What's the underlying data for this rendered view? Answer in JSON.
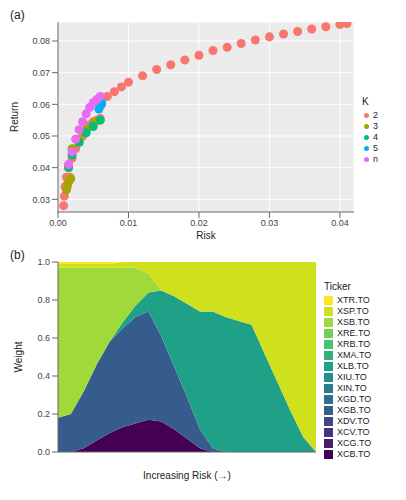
{
  "chart_data": [
    {
      "type": "scatter",
      "title": "(a)",
      "xlabel": "Risk",
      "ylabel": "Return",
      "legend_title": "K",
      "legend": "right",
      "grid": true,
      "marker": "circle",
      "xlim": [
        0,
        0.042
      ],
      "xticks": [
        {
          "value": 0,
          "label": "0.00"
        },
        0.01,
        0.02,
        0.03,
        0.04
      ],
      "ylim": [
        0.026,
        0.086
      ],
      "yticks": [
        0.03,
        0.04,
        0.05,
        0.06,
        0.07,
        0.08
      ],
      "series": [
        {
          "name": "2",
          "color": "#F8766D",
          "x": [
            0.0008,
            0.0009,
            0.001,
            0.0012,
            0.0015,
            0.002,
            0.0025,
            0.003,
            0.0035,
            0.004,
            0.0045,
            0.005,
            0.0055,
            0.006,
            0.0062,
            0.007,
            0.008,
            0.009,
            0.01,
            0.012,
            0.014,
            0.016,
            0.018,
            0.02,
            0.022,
            0.024,
            0.026,
            0.028,
            0.03,
            0.032,
            0.034,
            0.036,
            0.038,
            0.04,
            0.041,
            0.0013,
            0.0015,
            0.0017
          ],
          "values": [
            0.028,
            0.031,
            0.034,
            0.037,
            0.04,
            0.043,
            0.046,
            0.048,
            0.05,
            0.052,
            0.0535,
            0.0545,
            0.055,
            0.0555,
            0.06,
            0.0625,
            0.064,
            0.0655,
            0.067,
            0.069,
            0.071,
            0.0725,
            0.074,
            0.0755,
            0.077,
            0.078,
            0.0792,
            0.0803,
            0.0813,
            0.0822,
            0.083,
            0.0838,
            0.0845,
            0.0852,
            0.0855,
            0.034,
            0.0355,
            0.037
          ]
        },
        {
          "name": "3",
          "color": "#A3A500",
          "x": [
            0.0012,
            0.0014,
            0.0016,
            0.0018,
            0.002,
            0.003,
            0.004,
            0.005,
            0.0058
          ],
          "values": [
            0.033,
            0.035,
            0.036,
            0.0365,
            0.046,
            0.049,
            0.052,
            0.054,
            0.055
          ]
        },
        {
          "name": "4",
          "color": "#00BF7D",
          "x": [
            0.0015,
            0.002,
            0.003,
            0.004,
            0.005,
            0.006
          ],
          "values": [
            0.04,
            0.044,
            0.048,
            0.051,
            0.053,
            0.055
          ]
        },
        {
          "name": "5",
          "color": "#00B0F6",
          "x": [
            0.0058,
            0.006,
            0.0062
          ],
          "values": [
            0.0585,
            0.0595,
            0.0605
          ]
        },
        {
          "name": "n",
          "color": "#E76BF3",
          "x": [
            0.0015,
            0.002,
            0.0025,
            0.003,
            0.0035,
            0.004,
            0.0045,
            0.005,
            0.0055,
            0.006
          ],
          "values": [
            0.041,
            0.045,
            0.049,
            0.052,
            0.0545,
            0.057,
            0.059,
            0.0605,
            0.0615,
            0.0625
          ]
        }
      ]
    },
    {
      "type": "area",
      "title": "(b)",
      "xlabel": "Increasing Risk (→)",
      "ylabel": "Weight",
      "legend_title": "Ticker",
      "legend": "right",
      "grid": false,
      "stacked": true,
      "tick_labels": "y",
      "categories": [
        null,
        null,
        null,
        null,
        null,
        null,
        null,
        null,
        null,
        null,
        null,
        null,
        null,
        null,
        null,
        null,
        null,
        null,
        null,
        null,
        null
      ],
      "ylim": [
        0,
        1
      ],
      "yticks": [
        {
          "value": 0,
          "label": "0.0"
        },
        {
          "value": 0.2,
          "label": "0.2"
        },
        {
          "value": 0.4,
          "label": "0.4"
        },
        {
          "value": 0.6,
          "label": "0.6"
        },
        {
          "value": 0.8,
          "label": "0.8"
        },
        {
          "value": 1,
          "label": "1.0"
        }
      ],
      "series": [
        {
          "name": "XTR.TO",
          "color": "#FDE725",
          "values": [
            0.01,
            0.01,
            0.01,
            0.01,
            0.01,
            0,
            0,
            0,
            0,
            0,
            0,
            0,
            0,
            0,
            0,
            0,
            0,
            0,
            0,
            0,
            0
          ]
        },
        {
          "name": "XSP.TO",
          "color": "#CFE11C",
          "values": [
            0.02,
            0.02,
            0.02,
            0.02,
            0.02,
            0.03,
            0.03,
            0.06,
            0.15,
            0.18,
            0.22,
            0.26,
            0.26,
            0.29,
            0.31,
            0.33,
            0.48,
            0.63,
            0.78,
            0.92,
            1
          ]
        },
        {
          "name": "XSB.TO",
          "color": "#9FDA3A",
          "values": [
            0.79,
            0.77,
            0.65,
            0.51,
            0.39,
            0.29,
            0.2,
            0.1,
            0,
            0,
            0,
            0,
            0,
            0,
            0,
            0,
            0,
            0,
            0,
            0,
            0
          ]
        },
        {
          "name": "XRE.TO",
          "color": "#71CF57",
          "values": [
            0,
            0,
            0,
            0,
            0,
            0,
            0,
            0,
            0,
            0,
            0,
            0,
            0,
            0,
            0,
            0,
            0,
            0,
            0,
            0,
            0
          ]
        },
        {
          "name": "XRB.TO",
          "color": "#4AC16D",
          "values": [
            0,
            0,
            0,
            0,
            0,
            0,
            0,
            0,
            0,
            0,
            0,
            0,
            0,
            0,
            0,
            0,
            0,
            0,
            0,
            0,
            0
          ]
        },
        {
          "name": "XMA.TO",
          "color": "#2DB27D",
          "values": [
            0,
            0,
            0,
            0,
            0,
            0,
            0,
            0,
            0,
            0,
            0,
            0,
            0,
            0,
            0,
            0,
            0,
            0,
            0,
            0,
            0
          ]
        },
        {
          "name": "XLB.TO",
          "color": "#1FA187",
          "values": [
            0,
            0,
            0,
            0,
            0,
            0.03,
            0.06,
            0.1,
            0.24,
            0.37,
            0.49,
            0.62,
            0.72,
            0.71,
            0.69,
            0.67,
            0.52,
            0.37,
            0.22,
            0.08,
            0
          ]
        },
        {
          "name": "XIU.TO",
          "color": "#21908C",
          "values": [
            0,
            0,
            0,
            0,
            0,
            0,
            0,
            0,
            0,
            0,
            0,
            0,
            0,
            0,
            0,
            0,
            0,
            0,
            0,
            0,
            0
          ]
        },
        {
          "name": "XIN.TO",
          "color": "#277F8E",
          "values": [
            0,
            0,
            0,
            0,
            0,
            0,
            0,
            0,
            0,
            0,
            0,
            0,
            0,
            0,
            0,
            0,
            0,
            0,
            0,
            0,
            0
          ]
        },
        {
          "name": "XGD.TO",
          "color": "#2E6E8E",
          "values": [
            0,
            0,
            0,
            0,
            0,
            0,
            0,
            0,
            0,
            0,
            0,
            0,
            0,
            0,
            0,
            0,
            0,
            0,
            0,
            0,
            0
          ]
        },
        {
          "name": "XGB.TO",
          "color": "#365C8D",
          "values": [
            0.18,
            0.2,
            0.3,
            0.4,
            0.48,
            0.52,
            0.56,
            0.57,
            0.45,
            0.33,
            0.22,
            0.1,
            0.02,
            0,
            0,
            0,
            0,
            0,
            0,
            0,
            0
          ]
        },
        {
          "name": "XDV.TO",
          "color": "#3F4788",
          "values": [
            0,
            0,
            0,
            0,
            0,
            0,
            0,
            0,
            0,
            0,
            0,
            0,
            0,
            0,
            0,
            0,
            0,
            0,
            0,
            0,
            0
          ]
        },
        {
          "name": "XCV.TO",
          "color": "#46327E",
          "values": [
            0,
            0,
            0,
            0,
            0,
            0,
            0,
            0,
            0,
            0,
            0,
            0,
            0,
            0,
            0,
            0,
            0,
            0,
            0,
            0,
            0
          ]
        },
        {
          "name": "XCG.TO",
          "color": "#481B6D",
          "values": [
            0,
            0,
            0,
            0,
            0,
            0,
            0,
            0,
            0,
            0,
            0,
            0,
            0,
            0,
            0,
            0,
            0,
            0,
            0,
            0,
            0
          ]
        },
        {
          "name": "XCB.TO",
          "color": "#440154",
          "values": [
            0,
            0,
            0.02,
            0.06,
            0.1,
            0.13,
            0.15,
            0.17,
            0.16,
            0.12,
            0.07,
            0.02,
            0,
            0,
            0,
            0,
            0,
            0,
            0,
            0,
            0
          ]
        }
      ]
    }
  ]
}
